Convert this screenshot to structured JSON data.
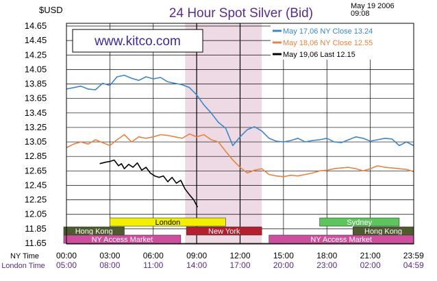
{
  "header": {
    "currency": "$USD",
    "title": "24 Hour Spot Silver (Bid)",
    "date": "May 19 2006",
    "time": "09:08"
  },
  "watermark": "www.kitco.com",
  "legend": {
    "position": "top-right",
    "entries": [
      {
        "text": "May 17,06  NY Close 13.24",
        "color": "#3a86c8"
      },
      {
        "text": "May 18,06  NY Close 12.55",
        "color": "#e8823e"
      },
      {
        "text": "May 19,06  Last 12.15",
        "color": "#000000"
      }
    ]
  },
  "time_rows": {
    "ny_label": "NY Time",
    "london_label": "London Time",
    "ny_ticks": [
      "00:00",
      "03:00",
      "06:00",
      "09:00",
      "12:00",
      "15:00",
      "18:00",
      "21:00",
      "23:59"
    ],
    "london_ticks": [
      "05:00",
      "08:00",
      "11:00",
      "14:00",
      "17:00",
      "20:00",
      "23:00",
      "02:00",
      "04:59"
    ]
  },
  "sessions": [
    {
      "label": "London",
      "start": 3.0,
      "end": 11.0,
      "fill": "#f2f000",
      "text": "#000000"
    },
    {
      "label": "Sydney",
      "start": 17.5,
      "end": 23.0,
      "fill": "#5cc65c",
      "text": "#ffffff"
    },
    {
      "label": "Hong Kong",
      "start": -0.3,
      "end": 4.0,
      "fill": "#4f5a2e",
      "text": "#ffffff"
    },
    {
      "label": "New York",
      "start": 8.3,
      "end": 13.5,
      "fill": "#b31f2d",
      "text": "#ffffff"
    },
    {
      "label": "Hong Kong",
      "start": 19.8,
      "end": 23.99,
      "fill": "#4f5a2e",
      "text": "#ffffff"
    },
    {
      "label": "NY Access Market",
      "start": -0.3,
      "end": 7.9,
      "fill": "#cf4f9f",
      "text": "#ffffff"
    },
    {
      "label": "NY Access Market",
      "start": 14.0,
      "end": 23.99,
      "fill": "#cf4f9f",
      "text": "#ffffff"
    }
  ],
  "chart_data": {
    "type": "line",
    "title": "24 Hour Spot Silver (Bid)",
    "ylabel": "$USD",
    "ylim": [
      11.65,
      14.65
    ],
    "xlim": [
      0,
      24
    ],
    "y_ticks": [
      "14.65",
      "14.45",
      "14.25",
      "14.05",
      "13.85",
      "13.65",
      "13.45",
      "13.25",
      "13.05",
      "12.85",
      "12.65",
      "12.45",
      "12.25",
      "12.05",
      "11.85",
      "11.65"
    ],
    "grid": true,
    "highlight_band": {
      "x_start": 8.2,
      "x_end": 13.5,
      "color": "#eedae4"
    },
    "series": [
      {
        "name": "May 17,06",
        "color": "#3a86c8",
        "x": [
          0.0,
          0.5,
          1.0,
          1.5,
          2.0,
          2.5,
          3.0,
          3.5,
          4.0,
          4.5,
          5.0,
          5.5,
          6.0,
          6.5,
          7.0,
          7.5,
          8.0,
          8.5,
          9.0,
          9.5,
          10.0,
          10.5,
          11.0,
          11.5,
          12.0,
          12.5,
          13.0,
          13.5,
          14.0,
          14.5,
          15.0,
          15.5,
          16.0,
          16.5,
          17.0,
          17.5,
          18.0,
          18.5,
          19.0,
          19.5,
          20.0,
          20.5,
          21.0,
          21.5,
          22.0,
          22.5,
          23.0,
          23.5,
          23.99
        ],
        "values": [
          13.78,
          13.8,
          13.82,
          13.78,
          13.77,
          13.86,
          13.83,
          13.95,
          13.97,
          13.93,
          13.9,
          13.95,
          13.92,
          13.94,
          13.88,
          13.86,
          13.84,
          13.8,
          13.7,
          13.56,
          13.45,
          13.32,
          13.24,
          13.0,
          13.12,
          13.22,
          13.26,
          13.2,
          13.1,
          13.06,
          13.05,
          13.07,
          13.1,
          13.05,
          13.07,
          13.08,
          13.1,
          13.05,
          13.04,
          13.08,
          13.12,
          13.1,
          13.06,
          13.08,
          13.1,
          13.09,
          13.0,
          13.05,
          13.0
        ]
      },
      {
        "name": "May 18,06",
        "color": "#e8823e",
        "x": [
          0.0,
          0.5,
          1.0,
          1.5,
          2.0,
          2.5,
          3.0,
          3.5,
          4.0,
          4.5,
          5.0,
          5.5,
          6.0,
          6.5,
          7.0,
          7.5,
          8.0,
          8.5,
          9.0,
          9.5,
          10.0,
          10.5,
          11.0,
          11.5,
          12.0,
          12.5,
          13.0,
          13.5,
          14.0,
          14.5,
          15.0,
          15.5,
          16.0,
          16.5,
          17.0,
          17.5,
          18.0,
          18.5,
          19.0,
          19.5,
          20.0,
          20.5,
          21.0,
          21.5,
          22.0,
          22.5,
          23.0,
          23.5,
          23.99
        ],
        "values": [
          12.97,
          13.02,
          13.05,
          13.02,
          13.08,
          13.04,
          13.0,
          13.08,
          13.15,
          13.05,
          13.12,
          13.1,
          13.12,
          13.15,
          13.14,
          13.12,
          13.1,
          13.16,
          13.12,
          13.15,
          13.08,
          13.05,
          12.92,
          12.8,
          12.7,
          12.62,
          12.66,
          12.68,
          12.6,
          12.58,
          12.57,
          12.59,
          12.58,
          12.6,
          12.62,
          12.65,
          12.66,
          12.68,
          12.69,
          12.7,
          12.68,
          12.65,
          12.68,
          12.72,
          12.7,
          12.69,
          12.68,
          12.67,
          12.64
        ]
      },
      {
        "name": "May 19,06",
        "color": "#000000",
        "x": [
          2.3,
          2.7,
          3.0,
          3.3,
          3.6,
          3.8,
          4.0,
          4.3,
          4.6,
          4.9,
          5.2,
          5.5,
          5.8,
          6.1,
          6.4,
          6.7,
          7.0,
          7.3,
          7.6,
          7.9,
          8.2,
          8.5,
          8.8,
          9.06
        ],
        "values": [
          12.75,
          12.77,
          12.78,
          12.8,
          12.72,
          12.75,
          12.68,
          12.74,
          12.7,
          12.76,
          12.66,
          12.7,
          12.62,
          12.58,
          12.56,
          12.58,
          12.5,
          12.56,
          12.48,
          12.52,
          12.4,
          12.32,
          12.25,
          12.15
        ]
      }
    ]
  }
}
